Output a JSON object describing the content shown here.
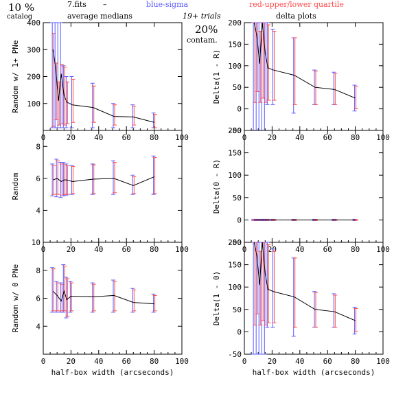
{
  "header": {
    "catalog_pct": "10 %",
    "catalog_label": "catalog",
    "file": "7.fits",
    "dash": "–",
    "average_medians": "average medians",
    "blue_label": "blue-sigma",
    "red_label": "red-upper/lower quartile",
    "trials": "19+ trials",
    "contam_pct": "20%",
    "contam_label": "contam.",
    "delta_plots": "delta plots"
  },
  "colors": {
    "sigma": "#5a5aff",
    "quartile": "#ff4a4a",
    "line": "#000000",
    "axis": "#000000"
  },
  "chart_data": [
    {
      "id": "p1",
      "type": "line",
      "xlabel": "",
      "ylabel": "Random w/ 1+ PNe",
      "xlim": [
        0,
        100
      ],
      "ylim": [
        0,
        400
      ],
      "xticks": [
        "0",
        "20",
        "40",
        "60",
        "80",
        "100"
      ],
      "yticks": [
        "100",
        "200",
        "300",
        "400"
      ],
      "x": [
        7,
        9,
        11,
        13,
        15,
        17,
        21,
        36,
        51,
        65,
        80
      ],
      "y": [
        300,
        230,
        110,
        210,
        130,
        105,
        95,
        85,
        52,
        50,
        30
      ],
      "sigma_low": [
        10,
        10,
        10,
        10,
        10,
        10,
        10,
        10,
        10,
        10,
        10
      ],
      "sigma_high": [
        400,
        400,
        400,
        400,
        240,
        200,
        200,
        175,
        100,
        95,
        65
      ],
      "q_low": [
        15,
        40,
        20,
        25,
        20,
        25,
        30,
        30,
        20,
        20,
        10
      ],
      "q_high": [
        360,
        250,
        180,
        245,
        235,
        180,
        190,
        165,
        95,
        90,
        60
      ]
    },
    {
      "id": "p2",
      "type": "line",
      "xlabel": "",
      "ylabel": "Random",
      "xlim": [
        0,
        100
      ],
      "ylim": [
        2,
        9
      ],
      "xticks": [
        "0",
        "20",
        "40",
        "60",
        "80",
        "100"
      ],
      "yticks": [
        "4",
        "6",
        "8"
      ],
      "x": [
        7,
        10,
        13,
        15,
        17,
        21,
        36,
        51,
        65,
        80
      ],
      "y": [
        5.9,
        6.0,
        5.8,
        5.9,
        5.9,
        5.8,
        5.95,
        6.0,
        5.55,
        6.1
      ],
      "sigma_low": [
        4.9,
        4.85,
        4.8,
        4.9,
        4.95,
        5.0,
        5.0,
        5.0,
        5.0,
        5.0
      ],
      "sigma_high": [
        6.9,
        7.2,
        7.0,
        7.0,
        6.9,
        6.8,
        6.9,
        7.1,
        6.2,
        7.4
      ],
      "q_low": [
        5.0,
        5.0,
        4.9,
        5.0,
        5.0,
        5.05,
        5.05,
        5.1,
        5.05,
        5.05
      ],
      "q_high": [
        6.8,
        7.1,
        6.9,
        6.9,
        6.8,
        6.75,
        6.85,
        7.0,
        6.1,
        7.3
      ]
    },
    {
      "id": "p3",
      "type": "line",
      "xlabel": "half-box width (arcseconds)",
      "ylabel": "Random w/ 0 PNe",
      "xlim": [
        0,
        100
      ],
      "ylim": [
        2,
        10
      ],
      "xticks": [
        "0",
        "20",
        "40",
        "60",
        "80",
        "100"
      ],
      "yticks": [
        "4",
        "6",
        "8",
        "10"
      ],
      "x": [
        7,
        10,
        13,
        15,
        17,
        20,
        36,
        51,
        65,
        80
      ],
      "y": [
        6.5,
        6.2,
        5.8,
        6.5,
        5.9,
        6.15,
        6.1,
        6.2,
        5.7,
        5.6
      ],
      "sigma_low": [
        5.0,
        5.0,
        5.0,
        5.0,
        4.6,
        5.0,
        5.0,
        5.0,
        5.0,
        5.0
      ],
      "sigma_high": [
        8.2,
        7.2,
        7.1,
        8.4,
        7.5,
        7.2,
        7.1,
        7.3,
        6.7,
        6.3
      ],
      "q_low": [
        5.1,
        5.1,
        5.1,
        5.1,
        4.7,
        5.1,
        5.1,
        5.1,
        5.1,
        5.1
      ],
      "q_high": [
        8.1,
        7.1,
        7.0,
        8.3,
        7.4,
        7.1,
        7.0,
        7.2,
        6.6,
        6.2
      ]
    },
    {
      "id": "p4",
      "type": "line",
      "xlabel": "",
      "ylabel": "Delta(1 - R)",
      "xlim": [
        0,
        100
      ],
      "ylim": [
        -50,
        200
      ],
      "xticks": [
        "0",
        "20",
        "40",
        "60",
        "80",
        "100"
      ],
      "yticks": [
        "-50",
        "0",
        "50",
        "100",
        "150",
        "200"
      ],
      "x": [
        7,
        9,
        11,
        13,
        15,
        17,
        21,
        36,
        51,
        65,
        80
      ],
      "y": [
        230,
        170,
        105,
        205,
        130,
        95,
        90,
        78,
        50,
        45,
        25
      ],
      "sigma_low": [
        -50,
        -50,
        -50,
        -50,
        -50,
        10,
        10,
        -10,
        10,
        10,
        -5
      ],
      "sigma_high": [
        200,
        200,
        200,
        200,
        200,
        200,
        185,
        165,
        90,
        85,
        55
      ],
      "q_low": [
        15,
        40,
        15,
        25,
        15,
        20,
        20,
        10,
        10,
        10,
        0
      ],
      "q_high": [
        200,
        200,
        180,
        200,
        200,
        195,
        180,
        165,
        88,
        82,
        52
      ]
    },
    {
      "id": "p5",
      "type": "line",
      "xlabel": "",
      "ylabel": "Delta(0 - R)",
      "xlim": [
        0,
        100
      ],
      "ylim": [
        -50,
        200
      ],
      "xticks": [
        "0",
        "20",
        "40",
        "60",
        "80",
        "100"
      ],
      "yticks": [
        "-50",
        "0",
        "50",
        "100",
        "150",
        "200"
      ],
      "x": [
        7,
        10,
        13,
        15,
        17,
        21,
        36,
        51,
        65,
        80
      ],
      "y": [
        0,
        0,
        0,
        0,
        0,
        0,
        0,
        0,
        0,
        0
      ],
      "sigma_low": [
        -1.5,
        -1.5,
        -1.5,
        -1.5,
        -1.5,
        -1.5,
        -1.5,
        -1.5,
        -1.5,
        -1.5
      ],
      "sigma_high": [
        1.5,
        1.5,
        1.5,
        1.5,
        1.5,
        1.5,
        1.5,
        1.5,
        1.5,
        1.5
      ],
      "q_low": [
        -1,
        -1,
        -1,
        -1,
        -1,
        -1,
        -1,
        -1,
        -1,
        -1
      ],
      "q_high": [
        1,
        1,
        1,
        1,
        1,
        1,
        1,
        1,
        1,
        1
      ]
    },
    {
      "id": "p6",
      "type": "line",
      "xlabel": "half-box width (arcseconds)",
      "ylabel": "Delta(1 - 0)",
      "xlim": [
        0,
        100
      ],
      "ylim": [
        -50,
        200
      ],
      "xticks": [
        "0",
        "20",
        "40",
        "60",
        "80",
        "100"
      ],
      "yticks": [
        "-50",
        "0",
        "50",
        "100",
        "150",
        "200"
      ],
      "x": [
        7,
        9,
        11,
        13,
        15,
        17,
        21,
        36,
        51,
        65,
        80
      ],
      "y": [
        230,
        170,
        105,
        205,
        130,
        95,
        90,
        78,
        50,
        45,
        25
      ],
      "sigma_low": [
        -50,
        -50,
        -50,
        -50,
        -50,
        10,
        10,
        -10,
        10,
        10,
        -5
      ],
      "sigma_high": [
        200,
        200,
        200,
        200,
        200,
        200,
        185,
        165,
        90,
        85,
        55
      ],
      "q_low": [
        15,
        40,
        15,
        25,
        15,
        20,
        20,
        10,
        10,
        10,
        0
      ],
      "q_high": [
        200,
        200,
        180,
        200,
        200,
        195,
        180,
        165,
        88,
        82,
        52
      ]
    }
  ]
}
